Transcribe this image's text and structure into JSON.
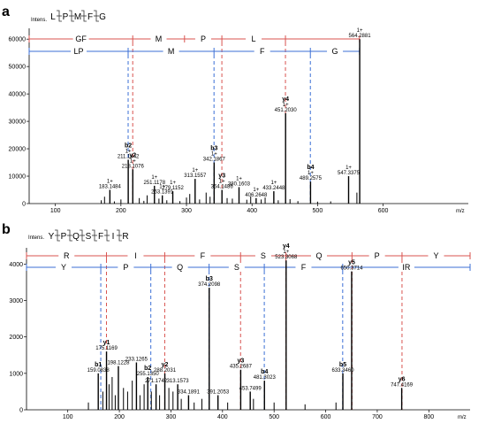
{
  "chart_data": [
    {
      "type": "bar",
      "panel_label": "a",
      "ylabel": "Intens.",
      "xlabel": "m/z",
      "peptide": [
        "L",
        "P",
        "M",
        "F",
        "G"
      ],
      "xlim": [
        60,
        730
      ],
      "ylim": [
        0,
        62000
      ],
      "xticks": [
        100,
        200,
        300,
        400,
        500,
        600
      ],
      "xtick_labels": [
        "100",
        "200",
        "300",
        "400",
        "500",
        "600"
      ],
      "yticks": [
        0,
        10000,
        20000,
        30000,
        40000,
        50000,
        60000
      ],
      "ytick_labels": [
        "0",
        "10000",
        "20000",
        "30000",
        "40000",
        "50000",
        "60000"
      ],
      "red_ladder": {
        "labels": [
          "GF",
          "M",
          "P",
          "L"
        ],
        "boundaries": [
          60,
          218,
          297,
          354,
          451,
          564
        ],
        "color": "#d9534f",
        "dashed_at": [
          218,
          354,
          451
        ]
      },
      "blue_ladder": {
        "labels": [
          "LP",
          "M",
          "F",
          "G"
        ],
        "boundaries": [
          60,
          211,
          342,
          489,
          564
        ],
        "color": "#3b6fd6",
        "dashed_at": [
          211,
          342,
          489
        ]
      },
      "peaks": [
        {
          "x": 183.1484,
          "y": 5000,
          "label": "183.1484",
          "charge": "1+"
        },
        {
          "x": 211.1442,
          "y": 16000,
          "label": "211.1442",
          "charge": "1+",
          "ion": "b2"
        },
        {
          "x": 218.1076,
          "y": 12500,
          "label": "218.1076",
          "charge": "1+",
          "ion": "y2"
        },
        {
          "x": 251.1178,
          "y": 6500,
          "label": "251.1178",
          "charge": "1+"
        },
        {
          "x": 263.1391,
          "y": 3000,
          "label": "263.1391",
          "charge": "1+"
        },
        {
          "x": 279.1152,
          "y": 4500,
          "label": "279.1152",
          "charge": "1+"
        },
        {
          "x": 313.1557,
          "y": 9000,
          "label": "313.1557",
          "charge": "1+"
        },
        {
          "x": 342.1867,
          "y": 15000,
          "label": "342.1867",
          "charge": "1+",
          "ion": "b3"
        },
        {
          "x": 354.1486,
          "y": 5000,
          "label": "354.1486",
          "charge": "1+",
          "ion": "y3"
        },
        {
          "x": 380.1603,
          "y": 6000,
          "label": "380.1603",
          "charge": "1+"
        },
        {
          "x": 406.2648,
          "y": 2000,
          "label": "406.2648",
          "charge": "1+"
        },
        {
          "x": 433.2448,
          "y": 4500,
          "label": "433.2448",
          "charge": "1+"
        },
        {
          "x": 451.203,
          "y": 33000,
          "label": "451.2030",
          "charge": "1+",
          "ion": "y4"
        },
        {
          "x": 489.2575,
          "y": 8000,
          "label": "489.2575",
          "charge": "1+",
          "ion": "b4"
        },
        {
          "x": 547.3375,
          "y": 10000,
          "label": "547.3375",
          "charge": "1+"
        },
        {
          "x": 564.2881,
          "y": 60000,
          "label": "564.2881",
          "charge": "1+"
        }
      ]
    },
    {
      "type": "bar",
      "panel_label": "b",
      "ylabel": "Intens.",
      "xlabel": "m/z",
      "peptide": [
        "Y",
        "P",
        "Q",
        "S",
        "F",
        "I",
        "R"
      ],
      "xlim": [
        20,
        880
      ],
      "ylim": [
        0,
        4300
      ],
      "xticks": [
        100,
        200,
        300,
        400,
        500,
        600,
        700,
        800
      ],
      "xtick_labels": [
        "100",
        "200",
        "300",
        "400",
        "500",
        "600",
        "700",
        "800"
      ],
      "yticks": [
        0,
        1000,
        2000,
        3000,
        4000
      ],
      "ytick_labels": [
        "0",
        "1000",
        "2000",
        "3000",
        "4000"
      ],
      "red_ladder": {
        "labels": [
          "R",
          "I",
          "F",
          "S",
          "Q",
          "P",
          "Y"
        ],
        "boundaries": [
          20,
          175,
          288,
          435,
          523,
          651,
          748,
          880
        ],
        "color": "#d9534f",
        "dashed_at": [
          175,
          288,
          435,
          523,
          651,
          748
        ]
      },
      "blue_ladder": {
        "labels": [
          "Y",
          "P",
          "Q",
          "S",
          "F",
          "IR"
        ],
        "boundaries": [
          20,
          164,
          261,
          374,
          481,
          633,
          880
        ],
        "color": "#3b6fd6",
        "dashed_at": [
          164,
          261,
          374,
          481,
          633
        ]
      },
      "peaks": [
        {
          "x": 159.0838,
          "y": 1000,
          "label": "159.0838",
          "ion": "b1"
        },
        {
          "x": 175.1169,
          "y": 1600,
          "label": "175.1169",
          "ion": "y1"
        },
        {
          "x": 198.1228,
          "y": 1200,
          "label": "198.1228"
        },
        {
          "x": 233.1265,
          "y": 1300,
          "label": "233.1265"
        },
        {
          "x": 255.135,
          "y": 900,
          "label": "255.1350",
          "ion": "b2"
        },
        {
          "x": 271.1742,
          "y": 700,
          "label": "271.1742"
        },
        {
          "x": 288.2031,
          "y": 1000,
          "label": "288.2031",
          "ion": "y2"
        },
        {
          "x": 313.1573,
          "y": 700,
          "label": "313.1573"
        },
        {
          "x": 334.1891,
          "y": 400,
          "label": "334.1891"
        },
        {
          "x": 374.2098,
          "y": 3350,
          "label": "374.2098",
          "ion": "b3"
        },
        {
          "x": 391.2053,
          "y": 400,
          "label": "391.2053"
        },
        {
          "x": 435.2687,
          "y": 1100,
          "label": "435.2687",
          "ion": "y3"
        },
        {
          "x": 453.7499,
          "y": 500,
          "label": "453.7499"
        },
        {
          "x": 481.3023,
          "y": 800,
          "label": "481.3023",
          "ion": "b4"
        },
        {
          "x": 523.3068,
          "y": 4100,
          "label": "523.3068",
          "charge": "1+",
          "ion": "y4"
        },
        {
          "x": 633.346,
          "y": 1000,
          "label": "633.3460",
          "ion": "b5"
        },
        {
          "x": 650.3714,
          "y": 3800,
          "label": "650.3714",
          "ion": "y5"
        },
        {
          "x": 747.4169,
          "y": 600,
          "label": "747.4169",
          "ion": "y6"
        }
      ]
    }
  ]
}
